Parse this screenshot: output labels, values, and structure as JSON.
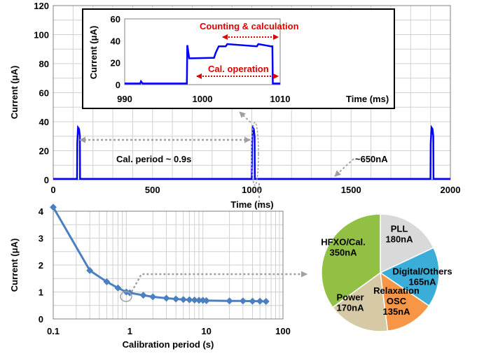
{
  "chart_data": [
    {
      "type": "line",
      "id": "top",
      "xlabel": "Time (ms)",
      "ylabel": "Current (μA)",
      "xlim": [
        0,
        2000
      ],
      "ylim": [
        0,
        120
      ],
      "xticks": [
        0,
        500,
        1000,
        1500,
        2000
      ],
      "yticks": [
        0,
        20,
        40,
        60,
        80,
        100,
        120
      ],
      "grid": true,
      "series": [
        {
          "color": "#0000ff",
          "x": [
            0,
            120,
            121,
            125,
            130,
            134,
            135,
            1000,
            1001,
            1005,
            1010,
            1014,
            1015,
            1900,
            1901,
            1905,
            1910,
            1914,
            1915,
            2000
          ],
          "y": [
            0.65,
            0.65,
            25,
            36,
            35,
            30,
            0.65,
            0.65,
            25,
            36,
            35,
            30,
            0.65,
            0.65,
            25,
            36,
            35,
            30,
            0.65,
            0.65
          ]
        }
      ],
      "annotations": [
        {
          "text": "Cal. period ~ 0.9s"
        },
        {
          "text": "~650nA"
        }
      ]
    },
    {
      "type": "line",
      "id": "inset",
      "xlabel": "Time (ms)",
      "ylabel": "Current (μA)",
      "xlim": [
        990,
        1010
      ],
      "ylim": [
        0,
        60
      ],
      "xticks": [
        990,
        1000,
        1010
      ],
      "yticks": [
        0,
        20,
        40,
        60
      ],
      "grid": false,
      "series": [
        {
          "color": "#0000ff",
          "x": [
            990,
            992,
            992.1,
            992.3,
            998.0,
            998.05,
            998.3,
            998.5,
            1001.5,
            1001.7,
            1002.1,
            1003,
            1003.2,
            1007,
            1007.2,
            1008.8,
            1009.0,
            1009.05,
            1010
          ],
          "y": [
            1,
            1,
            3,
            1,
            1,
            36,
            24,
            24,
            24.5,
            29,
            35,
            35,
            37,
            35,
            37,
            35,
            35,
            1,
            1
          ]
        }
      ],
      "annotations": [
        {
          "text": "Counting & calculation"
        },
        {
          "text": "Cal. operation"
        }
      ]
    },
    {
      "type": "scatter",
      "id": "bottom",
      "xlabel": "Calibration period (s)",
      "ylabel": "Current (μA)",
      "xscale": "log",
      "xlim": [
        0.1,
        100
      ],
      "ylim": [
        0,
        4
      ],
      "xticks": [
        0.1,
        1,
        10,
        100
      ],
      "yticks": [
        0,
        1,
        2,
        3,
        4
      ],
      "grid": true,
      "series": [
        {
          "color": "#4a7fc1",
          "x": [
            0.1,
            0.3,
            0.5,
            0.7,
            0.9,
            1.0,
            1.5,
            2,
            3,
            4,
            5,
            6,
            7,
            8,
            9,
            10,
            20,
            30,
            40,
            50,
            60
          ],
          "y": [
            4.15,
            1.8,
            1.38,
            1.15,
            1.0,
            0.97,
            0.88,
            0.82,
            0.77,
            0.74,
            0.72,
            0.71,
            0.7,
            0.69,
            0.69,
            0.68,
            0.67,
            0.67,
            0.66,
            0.66,
            0.65
          ]
        }
      ]
    },
    {
      "type": "pie",
      "id": "pie",
      "slices": [
        {
          "label": "PLL",
          "sub": "180nA",
          "value": 180,
          "color": "#d9d9d9"
        },
        {
          "label": "Digital/Others",
          "sub": "165nA",
          "value": 165,
          "color": "#3aaed8"
        },
        {
          "label": "Relaxation OSC",
          "sub": "135nA",
          "value": 135,
          "color": "#f79646"
        },
        {
          "label": "Power",
          "sub": "170nA",
          "value": 170,
          "color": "#d5c9a6"
        },
        {
          "label": "HFXO/Cal.",
          "sub": "350nA",
          "value": 350,
          "color": "#92c044"
        }
      ]
    }
  ]
}
